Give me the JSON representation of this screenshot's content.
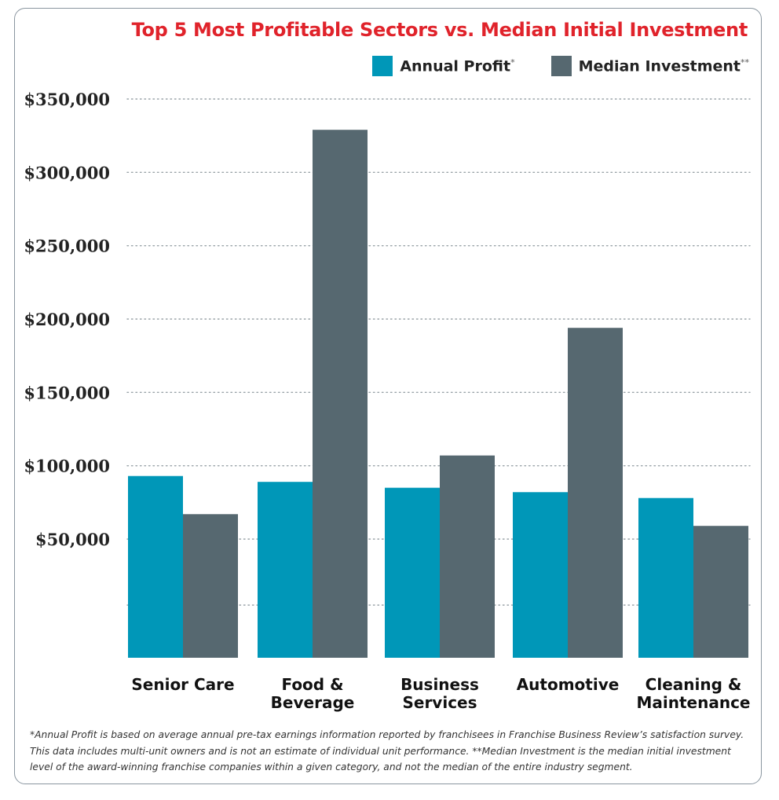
{
  "chart_data": {
    "type": "bar",
    "title": "Top 5 Most Profitable Sectors vs. Median Initial Investment",
    "categories": [
      "Senior Care",
      "Food & Beverage",
      "Business Services",
      "Automotive",
      "Cleaning & Maintenance"
    ],
    "category_lines": [
      [
        "Senior Care"
      ],
      [
        "Food &",
        "Beverage"
      ],
      [
        "Business",
        "Services"
      ],
      [
        "Automotive"
      ],
      [
        "Cleaning &",
        "Maintenance"
      ]
    ],
    "series": [
      {
        "name": "Annual Profit",
        "marker": "*",
        "color": "#0097b8",
        "values": [
          93000,
          89000,
          85000,
          82000,
          78000
        ]
      },
      {
        "name": "Median Investment",
        "marker": "**",
        "color": "#566870",
        "values": [
          67000,
          329000,
          107000,
          194000,
          59000
        ]
      }
    ],
    "y_ticks": [
      50000,
      100000,
      150000,
      200000,
      250000,
      300000,
      350000
    ],
    "y_tick_labels": [
      "$50,000",
      "$100,000",
      "$150,000",
      "$200,000",
      "$250,000",
      "$300,000",
      "$350,000"
    ],
    "ylim": [
      -25000,
      350000
    ],
    "grid": true,
    "grid_style": "dotted",
    "legend": "top-right",
    "xlabel": "",
    "ylabel": ""
  },
  "footnote": "*Annual Profit is based on average annual pre-tax earnings information reported by franchisees in Franchise Business Review’s satisfaction survey. This data includes multi-unit owners and is not an estimate of individual unit performance. **Median Investment is the median initial investment level of the award-winning franchise companies within a given category, and not the median of the entire industry segment."
}
